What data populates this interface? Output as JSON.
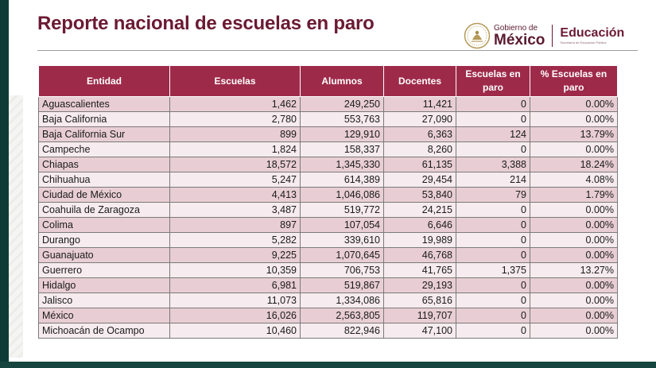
{
  "header": {
    "title": "Reporte nacional de escuelas en paro",
    "logo_gobierno_line1": "Gobierno de",
    "logo_gobierno_line2": "México",
    "logo_educacion": "Educación",
    "logo_educacion_sub": "Secretaría de Educación Pública"
  },
  "colors": {
    "header_bg": "#9e2a4a",
    "title": "#6b1a33",
    "row_odd": "#e8ced4",
    "row_even": "#f6ebee",
    "side_bar": "#0f3b36"
  },
  "table": {
    "headers": [
      "Entidad",
      "Escuelas",
      "Alumnos",
      "Docentes",
      "Escuelas en paro",
      "% Escuelas en paro"
    ],
    "rows": [
      [
        "Aguascalientes",
        "1,462",
        "249,250",
        "11,421",
        "0",
        "0.00%"
      ],
      [
        "Baja California",
        "2,780",
        "553,763",
        "27,090",
        "0",
        "0.00%"
      ],
      [
        "Baja California Sur",
        "899",
        "129,910",
        "6,363",
        "124",
        "13.79%"
      ],
      [
        "Campeche",
        "1,824",
        "158,337",
        "8,260",
        "0",
        "0.00%"
      ],
      [
        "Chiapas",
        "18,572",
        "1,345,330",
        "61,135",
        "3,388",
        "18.24%"
      ],
      [
        "Chihuahua",
        "5,247",
        "614,389",
        "29,454",
        "214",
        "4.08%"
      ],
      [
        "Ciudad de México",
        "4,413",
        "1,046,086",
        "53,840",
        "79",
        "1.79%"
      ],
      [
        "Coahuila de Zaragoza",
        "3,487",
        "519,772",
        "24,215",
        "0",
        "0.00%"
      ],
      [
        "Colima",
        "897",
        "107,054",
        "6,646",
        "0",
        "0.00%"
      ],
      [
        "Durango",
        "5,282",
        "339,610",
        "19,989",
        "0",
        "0.00%"
      ],
      [
        "Guanajuato",
        "9,225",
        "1,070,645",
        "46,768",
        "0",
        "0.00%"
      ],
      [
        "Guerrero",
        "10,359",
        "706,753",
        "41,765",
        "1,375",
        "13.27%"
      ],
      [
        "Hidalgo",
        "6,981",
        "519,867",
        "29,193",
        "0",
        "0.00%"
      ],
      [
        "Jalisco",
        "11,073",
        "1,334,086",
        "65,816",
        "0",
        "0.00%"
      ],
      [
        "México",
        "16,026",
        "2,563,805",
        "119,707",
        "0",
        "0.00%"
      ],
      [
        "Michoacán de Ocampo",
        "10,460",
        "822,946",
        "47,100",
        "0",
        "0.00%"
      ]
    ]
  }
}
